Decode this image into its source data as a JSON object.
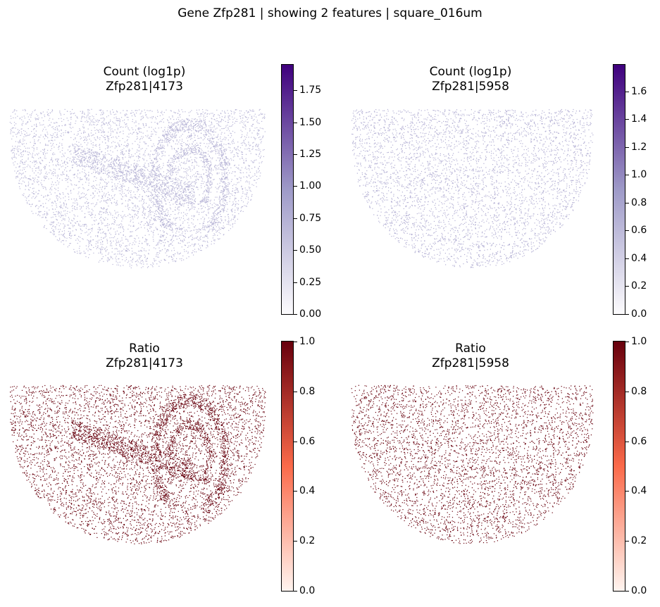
{
  "suptitle": "Gene Zfp281 | showing 2 features | square_016um",
  "chart_data": [
    {
      "type": "scatter",
      "title_line1": "Count (log1p)",
      "title_line2": "Zfp281|4173",
      "colormap": "Purples",
      "colors": {
        "low": "#fcfbfd",
        "mid": "#9e9ac8",
        "high": "#3f007d"
      },
      "colorbar_range": [
        0,
        1.95
      ],
      "colorbar_ticks": [
        "0.00",
        "0.25",
        "0.50",
        "0.75",
        "1.00",
        "1.25",
        "1.50",
        "1.75"
      ],
      "colorbar_tick_values": [
        0,
        0.25,
        0.5,
        0.75,
        1.0,
        1.25,
        1.5,
        1.75
      ],
      "dominant_value": 0.69,
      "feature": "4173"
    },
    {
      "type": "scatter",
      "title_line1": "Count (log1p)",
      "title_line2": "Zfp281|5958",
      "colormap": "Purples",
      "colors": {
        "low": "#fcfbfd",
        "mid": "#9e9ac8",
        "high": "#3f007d"
      },
      "colorbar_range": [
        0,
        1.79
      ],
      "colorbar_ticks": [
        "0.0",
        "0.2",
        "0.4",
        "0.6",
        "0.8",
        "1.0",
        "1.2",
        "1.4",
        "1.6"
      ],
      "colorbar_tick_values": [
        0,
        0.2,
        0.4,
        0.6,
        0.8,
        1.0,
        1.2,
        1.4,
        1.6
      ],
      "dominant_value": 0.69,
      "feature": "5958"
    },
    {
      "type": "scatter",
      "title_line1": "Ratio",
      "title_line2": "Zfp281|4173",
      "colormap": "Reds",
      "colors": {
        "low": "#fff5f0",
        "mid": "#fb6a4a",
        "high": "#67000d"
      },
      "colorbar_range": [
        0,
        1.0
      ],
      "colorbar_ticks": [
        "0.0",
        "0.2",
        "0.4",
        "0.6",
        "0.8",
        "1.0"
      ],
      "colorbar_tick_values": [
        0,
        0.2,
        0.4,
        0.6,
        0.8,
        1.0
      ],
      "dominant_value": 1.0,
      "feature": "4173"
    },
    {
      "type": "scatter",
      "title_line1": "Ratio",
      "title_line2": "Zfp281|5958",
      "colormap": "Reds",
      "colors": {
        "low": "#fff5f0",
        "mid": "#fb6a4a",
        "high": "#67000d"
      },
      "colorbar_range": [
        0,
        1.0
      ],
      "colorbar_ticks": [
        "0.0",
        "0.2",
        "0.4",
        "0.6",
        "0.8",
        "1.0"
      ],
      "colorbar_tick_values": [
        0,
        0.2,
        0.4,
        0.6,
        0.8,
        1.0
      ],
      "dominant_value": 1.0,
      "feature": "5958"
    }
  ]
}
